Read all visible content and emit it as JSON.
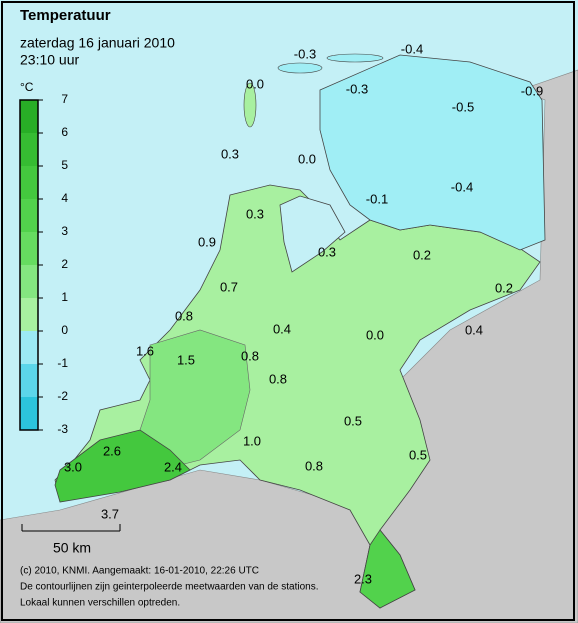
{
  "header": {
    "title": "Temperatuur",
    "subtitle": "zaterdag 16 januari 2010",
    "time": "23:10 uur"
  },
  "legend": {
    "unit": "°C",
    "ticks": [
      -3,
      -2,
      -1,
      0,
      1,
      2,
      3,
      4,
      5,
      6,
      7
    ],
    "colors": [
      "#2cc4dc",
      "#5cd6ea",
      "#9ceaf4",
      "#a8f0a0",
      "#84e680",
      "#66dc60",
      "#52d24c",
      "#44c83e",
      "#36bc32",
      "#28ae26"
    ]
  },
  "stations": [
    {
      "label": "-0.3"
    },
    {
      "label": "-0.4"
    },
    {
      "label": "0.0"
    },
    {
      "label": "-0.3"
    },
    {
      "label": "-0.5"
    },
    {
      "label": "-0.9"
    },
    {
      "label": "0.3"
    },
    {
      "label": "0.0"
    },
    {
      "label": "-0.1"
    },
    {
      "label": "-0.4"
    },
    {
      "label": "0.3"
    },
    {
      "label": "0.9"
    },
    {
      "label": "0.3"
    },
    {
      "label": "0.2"
    },
    {
      "label": "0.2"
    },
    {
      "label": "0.7"
    },
    {
      "label": "0.8"
    },
    {
      "label": "0.4"
    },
    {
      "label": "0.0"
    },
    {
      "label": "0.4"
    },
    {
      "label": "1.6"
    },
    {
      "label": "1.5"
    },
    {
      "label": "0.8"
    },
    {
      "label": "0.8"
    },
    {
      "label": "0.5"
    },
    {
      "label": "1.0"
    },
    {
      "label": "0.5"
    },
    {
      "label": "2.6"
    },
    {
      "label": "2.4"
    },
    {
      "label": "3.0"
    },
    {
      "label": "0.8"
    },
    {
      "label": "3.7"
    },
    {
      "label": "2.3"
    }
  ],
  "scale": {
    "label": "50 km"
  },
  "footer": {
    "lines": [
      "(c) 2010, KNMI. Aangemaakt: 16-01-2010, 22:26 UTC",
      "De contourlijnen zijn geinterpoleerde meetwaarden van de stations.",
      "Lokaal kunnen verschillen optreden."
    ]
  }
}
